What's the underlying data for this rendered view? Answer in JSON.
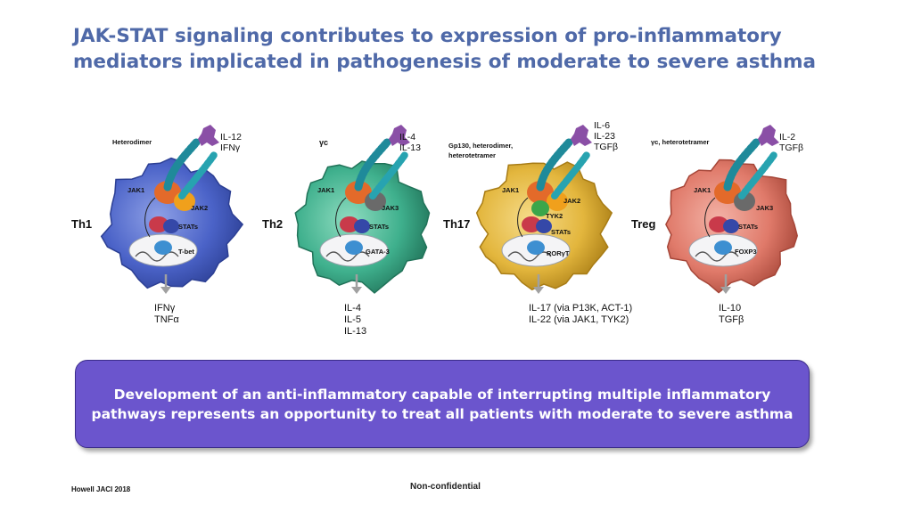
{
  "title": {
    "line1": "JAK-STAT signaling contributes to expression of pro-inflammatory",
    "line2": "mediators implicated in pathogenesis of moderate to severe asthma"
  },
  "panels": [
    {
      "name": "Th1",
      "receptor_label": "Heterodimer",
      "cytokines": [
        "IL-12",
        "IFNγ"
      ],
      "jak_labels": [
        "JAK1",
        "JAK2"
      ],
      "stats_label": "STATs",
      "tf_label": "T-bet",
      "outputs": [
        "IFNγ",
        "TNFα"
      ],
      "colors": {
        "cell": "#4b63c8",
        "cell_dark": "#2c3f94",
        "cell_light": "#8ea0e6"
      }
    },
    {
      "name": "Th2",
      "receptor_label": "γc",
      "cytokines": [
        "IL-4",
        "IL-13"
      ],
      "jak_labels": [
        "JAK1",
        "JAK3"
      ],
      "stats_label": "STATs",
      "tf_label": "GATA-3",
      "outputs": [
        "IL-4",
        "IL-5",
        "IL-13"
      ],
      "colors": {
        "cell": "#3fb08d",
        "cell_dark": "#217359",
        "cell_light": "#8fdcc0"
      }
    },
    {
      "name": "Th17",
      "receptor_label": "Gp130, heterodimer,",
      "receptor_label2": "heterotetramer",
      "cytokines": [
        "IL-6",
        "IL-23",
        "TGFβ"
      ],
      "jak_labels": [
        "JAK1",
        "JAK2",
        "TYK2"
      ],
      "stats_label": "STATs",
      "tf_label": "RORγT",
      "outputs": [
        "IL-17 (via P13K, ACT-1)",
        "IL-22 (via JAK1, TYK2)"
      ],
      "colors": {
        "cell": "#e3b63d",
        "cell_dark": "#a87c15",
        "cell_light": "#f6dc8a"
      }
    },
    {
      "name": "Treg",
      "receptor_label": "γc, heterotetramer",
      "cytokines": [
        "IL-2",
        "TGFβ"
      ],
      "jak_labels": [
        "JAK1",
        "JAK3"
      ],
      "stats_label": "STATs",
      "tf_label": "FOXP3",
      "outputs": [
        "IL-10",
        "TGFβ"
      ],
      "colors": {
        "cell": "#e07a6a",
        "cell_dark": "#a64638",
        "cell_light": "#f3b3a7"
      }
    }
  ],
  "callout": {
    "line1": "Development of an anti-inflammatory capable of interrupting multiple inflammatory",
    "line2": "pathways represents an opportunity to treat all patients with moderate to severe asthma",
    "color": "#6b55cd"
  },
  "footer": {
    "reference": "Howell JACI 2018",
    "confidentiality": "Non-confidential"
  }
}
